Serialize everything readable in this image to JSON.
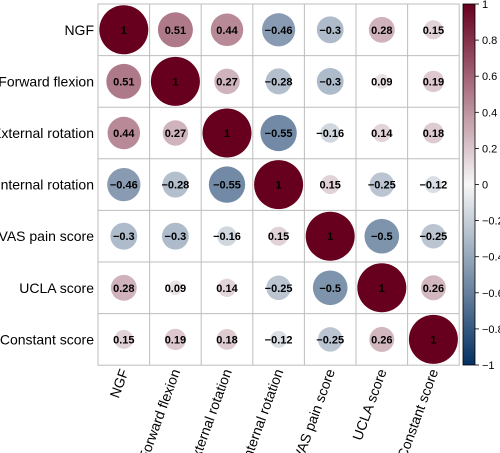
{
  "chart_data": {
    "type": "heatmap",
    "variables": [
      "NGF",
      "Forward flexion",
      "External rotation",
      "Internal rotation",
      "VAS pain score",
      "UCLA score",
      "Constant score"
    ],
    "matrix": [
      [
        1,
        0.51,
        0.44,
        -0.46,
        -0.3,
        0.28,
        0.15
      ],
      [
        0.51,
        1,
        0.27,
        -0.28,
        -0.3,
        0.09,
        0.19
      ],
      [
        0.44,
        0.27,
        1,
        -0.55,
        -0.16,
        0.14,
        0.18
      ],
      [
        -0.46,
        -0.28,
        -0.55,
        1,
        0.15,
        -0.25,
        -0.12
      ],
      [
        -0.3,
        -0.3,
        -0.16,
        0.15,
        1,
        -0.5,
        -0.25
      ],
      [
        0.28,
        0.09,
        0.14,
        -0.25,
        -0.5,
        1,
        0.26
      ],
      [
        0.15,
        0.19,
        0.18,
        -0.12,
        -0.25,
        0.26,
        1
      ]
    ],
    "labels": [
      [
        "1",
        "0.51",
        "0.44",
        "−0.46",
        "−0.3",
        "0.28",
        "0.15"
      ],
      [
        "0.51",
        "1",
        "0.27",
        "−0.28",
        "−0.3",
        "0.09",
        "0.19"
      ],
      [
        "0.44",
        "0.27",
        "1",
        "−0.55",
        "−0.16",
        "0.14",
        "0.18"
      ],
      [
        "−0.46",
        "−0.28",
        "−0.55",
        "1",
        "0.15",
        "−0.25",
        "−0.12"
      ],
      [
        "−0.3",
        "−0.3",
        "−0.16",
        "0.15",
        "1",
        "−0.5",
        "−0.25"
      ],
      [
        "0.28",
        "0.09",
        "0.14",
        "−0.25",
        "−0.5",
        "1",
        "0.26"
      ],
      [
        "0.15",
        "0.19",
        "0.18",
        "−0.12",
        "−0.25",
        "0.26",
        "1"
      ]
    ],
    "colorbar": {
      "range": [
        -1,
        1
      ],
      "ticks": [
        1,
        0.8,
        0.6,
        0.4,
        0.2,
        0,
        -0.2,
        -0.4,
        -0.6,
        -0.8,
        -1
      ],
      "tick_labels": [
        "1",
        "0.8",
        "0.6",
        "0.4",
        "0.2",
        "0",
        "−0.2",
        "−0.4",
        "−0.6",
        "−0.8",
        "−1"
      ],
      "colors": {
        "negative": "#053061",
        "zero": "#f7f7f7",
        "positive": "#67001f"
      }
    },
    "grid": true,
    "legend_placement": "right"
  }
}
